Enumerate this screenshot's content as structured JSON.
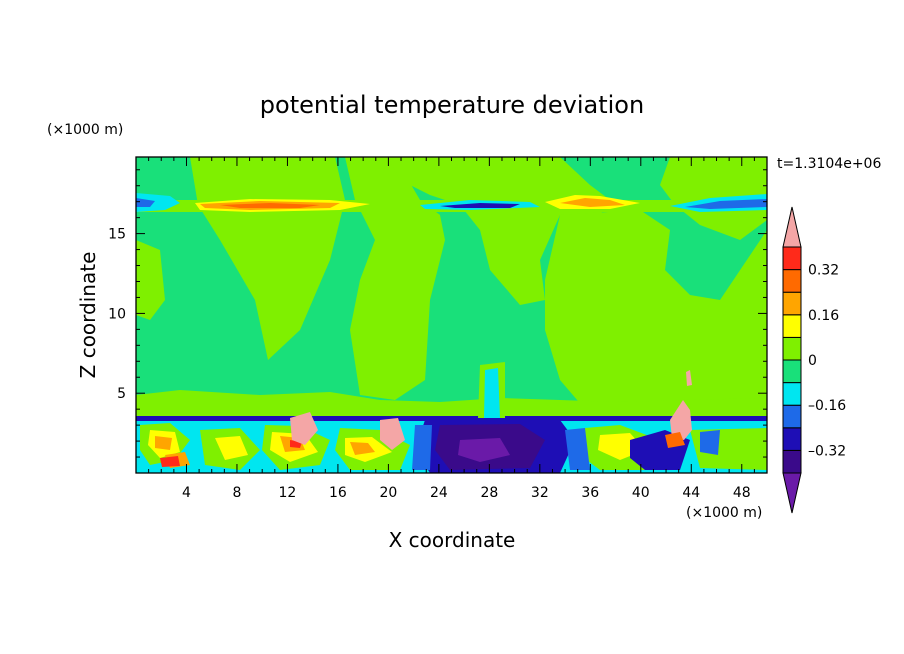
{
  "chart_data": {
    "type": "heatmap",
    "title": "potential temperature deviation",
    "xlabel": "X coordinate",
    "ylabel": "Z coordinate",
    "x_unit": "(×1000 m)",
    "y_unit": "(×1000 m)",
    "time_label": "t=1.3104e+06",
    "xlim": [
      0,
      50
    ],
    "ylim": [
      0,
      19.8
    ],
    "xticks": [
      4,
      8,
      12,
      16,
      20,
      24,
      28,
      32,
      36,
      40,
      44,
      48
    ],
    "yticks": [
      5,
      10,
      15
    ],
    "colorbar": {
      "levels": [
        -0.4,
        -0.32,
        -0.24,
        -0.16,
        -0.08,
        0,
        0.08,
        0.16,
        0.24,
        0.32,
        0.4
      ],
      "tick_labels": [
        "0.32",
        "0.16",
        "0",
        "–0.16",
        "–0.32"
      ],
      "tick_values": [
        0.32,
        0.16,
        0,
        -0.16,
        -0.32
      ],
      "colors": [
        "#6a1aa8",
        "#3a0a8a",
        "#1e0eb5",
        "#1e6ae8",
        "#00e6f0",
        "#19e07a",
        "#7ff000",
        "#ffff00",
        "#ffa500",
        "#ff6a00",
        "#ff2a1a",
        "#f4a6a6"
      ]
    }
  }
}
